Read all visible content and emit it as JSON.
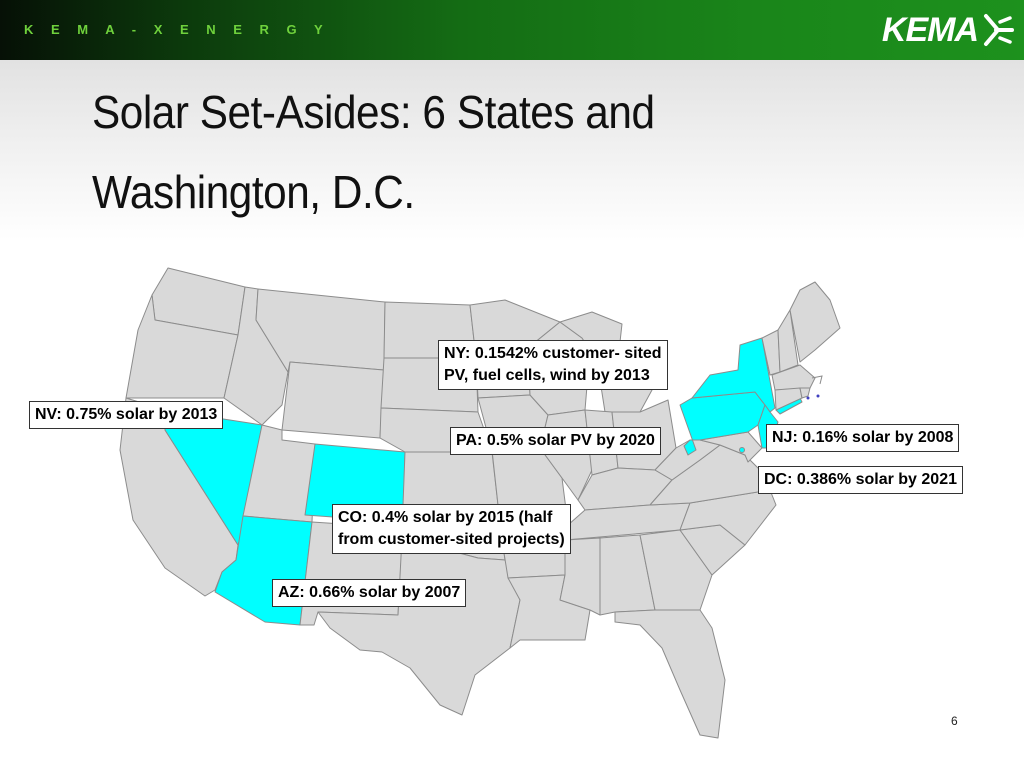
{
  "header": {
    "tagline": "K E M A - X E N E R G Y",
    "logo_text": "KEMA"
  },
  "slide": {
    "title_line1": "Solar Set-Asides: 6 States and",
    "title_line2": "Washington, D.C.",
    "page_number": "6"
  },
  "map": {
    "highlight_color": "#00ffff",
    "base_color": "#d9d9d9",
    "border_color": "#8c8c8c",
    "highlighted_states": [
      "NV",
      "AZ",
      "CO",
      "NY",
      "PA",
      "NJ",
      "DC"
    ],
    "callouts": {
      "ny_line1": "NY: 0.1542% customer- sited",
      "ny_line2": "PV, fuel cells, wind by 2013",
      "nv": "NV: 0.75% solar by 2013",
      "pa": "PA: 0.5% solar PV by 2020",
      "nj": "NJ: 0.16% solar by 2008",
      "dc": "DC: 0.386% solar by 2021",
      "co_line1": "CO: 0.4% solar by 2015 (half",
      "co_line2": "from customer-sited projects)",
      "az": "AZ: 0.66% solar by 2007"
    }
  }
}
